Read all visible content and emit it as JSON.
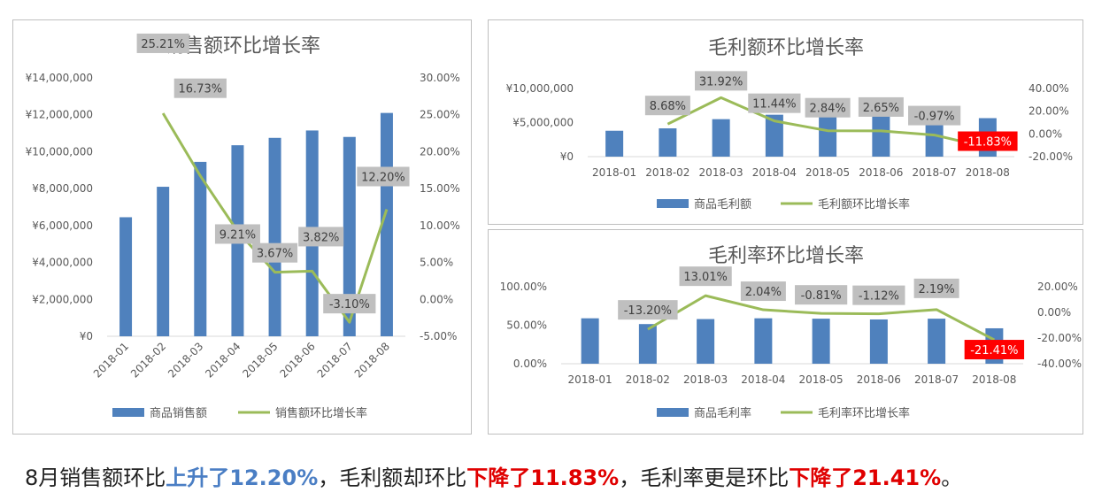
{
  "chart_data": [
    {
      "type": "bar",
      "title": "销售额环比增长率",
      "categories": [
        "2018-01",
        "2018-02",
        "2018-03",
        "2018-04",
        "2018-05",
        "2018-06",
        "2018-07",
        "2018-08"
      ],
      "series": [
        {
          "name": "商品销售额",
          "type": "bar",
          "axis": "left",
          "values": [
            6450000,
            8100000,
            9450000,
            10350000,
            10750000,
            11150000,
            10800000,
            12100000
          ]
        },
        {
          "name": "销售额环比增长率",
          "type": "line",
          "axis": "right",
          "values": [
            null,
            25.21,
            16.73,
            9.21,
            3.67,
            3.82,
            -3.1,
            12.2
          ]
        }
      ],
      "data_labels": [
        "",
        "25.21%",
        "16.73%",
        "9.21%",
        "3.67%",
        "3.82%",
        "-3.10%",
        "12.20%"
      ],
      "y_left_ticks": [
        "¥0",
        "¥2,000,000",
        "¥4,000,000",
        "¥6,000,000",
        "¥8,000,000",
        "¥10,000,000",
        "¥12,000,000",
        "¥14,000,000"
      ],
      "y_right_ticks": [
        "-5.00%",
        "0.00%",
        "5.00%",
        "10.00%",
        "15.00%",
        "20.00%",
        "25.00%",
        "30.00%"
      ],
      "ylim_left": [
        0,
        14000000
      ],
      "ylim_right": [
        -5,
        30
      ],
      "legend_position": "bottom",
      "colors": {
        "bar": "#4f81bd",
        "line": "#9bbb59",
        "label_bg": "#bfbfbf"
      }
    },
    {
      "type": "bar",
      "title": "毛利额环比增长率",
      "categories": [
        "2018-01",
        "2018-02",
        "2018-03",
        "2018-04",
        "2018-05",
        "2018-06",
        "2018-07",
        "2018-08"
      ],
      "series": [
        {
          "name": "商品毛利额",
          "type": "bar",
          "axis": "left",
          "values": [
            3800000,
            4150000,
            5500000,
            6150000,
            6300000,
            6450000,
            6400000,
            5650000
          ]
        },
        {
          "name": "毛利额环比增长率",
          "type": "line",
          "axis": "right",
          "values": [
            null,
            8.68,
            31.92,
            11.44,
            2.84,
            2.65,
            -0.97,
            -11.83
          ]
        }
      ],
      "data_labels": [
        "",
        "8.68%",
        "31.92%",
        "11.44%",
        "2.84%",
        "2.65%",
        "-0.97%",
        "-11.83%"
      ],
      "highlight_last_label": true,
      "y_left_ticks": [
        "¥0",
        "¥5,000,000",
        "¥10,000,000"
      ],
      "y_right_ticks": [
        "-20.00%",
        "0.00%",
        "20.00%",
        "40.00%"
      ],
      "ylim_left": [
        0,
        10000000
      ],
      "ylim_right": [
        -20,
        40
      ],
      "legend_position": "bottom",
      "colors": {
        "bar": "#4f81bd",
        "line": "#9bbb59",
        "label_bg": "#bfbfbf",
        "highlight": "#ff0000"
      }
    },
    {
      "type": "bar",
      "title": "毛利率环比增长率",
      "categories": [
        "2018-01",
        "2018-02",
        "2018-03",
        "2018-04",
        "2018-05",
        "2018-06",
        "2018-07",
        "2018-08"
      ],
      "series": [
        {
          "name": "商品毛利率",
          "type": "bar",
          "axis": "left",
          "values": [
            59.0,
            51.5,
            58.0,
            59.0,
            58.5,
            57.5,
            58.5,
            46.0
          ]
        },
        {
          "name": "毛利率环比增长率",
          "type": "line",
          "axis": "right",
          "values": [
            null,
            -13.2,
            13.01,
            2.04,
            -0.81,
            -1.12,
            2.19,
            -21.41
          ]
        }
      ],
      "data_labels": [
        "",
        "-13.20%",
        "13.01%",
        "2.04%",
        "-0.81%",
        "-1.12%",
        "2.19%",
        "-21.41%"
      ],
      "highlight_last_label": true,
      "y_left_ticks": [
        "0.00%",
        "50.00%",
        "100.00%"
      ],
      "y_right_ticks": [
        "-40.00%",
        "-20.00%",
        "0.00%",
        "20.00%"
      ],
      "ylim_left": [
        0,
        100
      ],
      "ylim_right": [
        -40,
        20
      ],
      "legend_position": "bottom",
      "colors": {
        "bar": "#4f81bd",
        "line": "#9bbb59",
        "label_bg": "#bfbfbf",
        "highlight": "#ff0000"
      }
    }
  ],
  "summary": {
    "part1": "8月销售额环比",
    "part2": "上升了12.20%",
    "part3": "，毛利额却环比",
    "part4": "下降了11.83%",
    "part5": "，毛利率更是环比",
    "part6": "下降了21.41%",
    "part7": "。"
  }
}
